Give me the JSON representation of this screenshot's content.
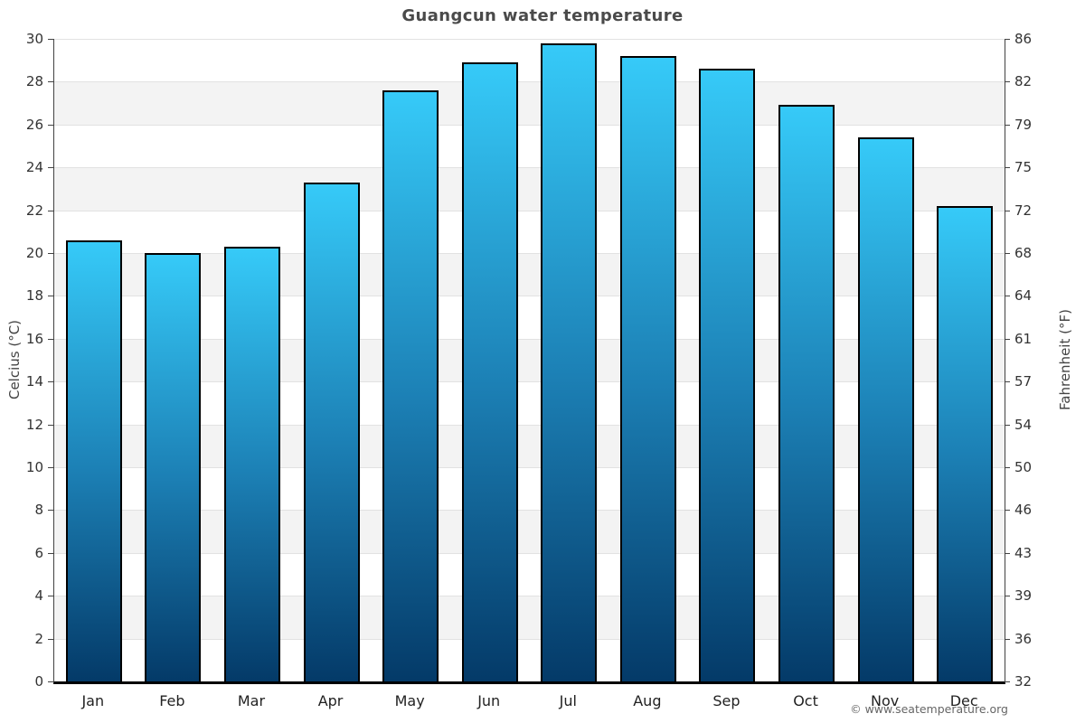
{
  "chart_data": {
    "type": "bar",
    "title": "Guangcun water temperature",
    "categories": [
      "Jan",
      "Feb",
      "Mar",
      "Apr",
      "May",
      "Jun",
      "Jul",
      "Aug",
      "Sep",
      "Oct",
      "Nov",
      "Dec"
    ],
    "values": [
      20.6,
      20.0,
      20.3,
      23.3,
      27.6,
      28.9,
      29.8,
      29.2,
      28.6,
      26.9,
      25.4,
      22.2
    ],
    "ylabel_left": "Celcius (°C)",
    "ylabel_right": "Fahrenheit (°F)",
    "ylim": [
      0,
      30
    ],
    "yticks_celsius": [
      0,
      2,
      4,
      6,
      8,
      10,
      12,
      14,
      16,
      18,
      20,
      22,
      24,
      26,
      28,
      30
    ],
    "yticks_fahrenheit": [
      32,
      36,
      39,
      43,
      46,
      50,
      54,
      57,
      61,
      64,
      68,
      72,
      75,
      79,
      82,
      86
    ],
    "xlabel": "",
    "grid": "horizontal alternating bands every 2°C",
    "legend": "none"
  },
  "footer": {
    "copyright": "© www.seatemperature.org"
  },
  "colors": {
    "title_text": "#4a4a4a",
    "tick_text": "#333333",
    "month_text": "#222222",
    "copyright_text": "#666666",
    "axis_line": "#424242",
    "baseline": "#000000",
    "band_gray": "#f3f3f3",
    "gridline": "#e2e2e2",
    "bar_border": "#000000",
    "bar_gradient_top": "#36caf8",
    "bar_gradient_mid": "#1c80b5",
    "bar_gradient_bottom": "#043a68"
  }
}
